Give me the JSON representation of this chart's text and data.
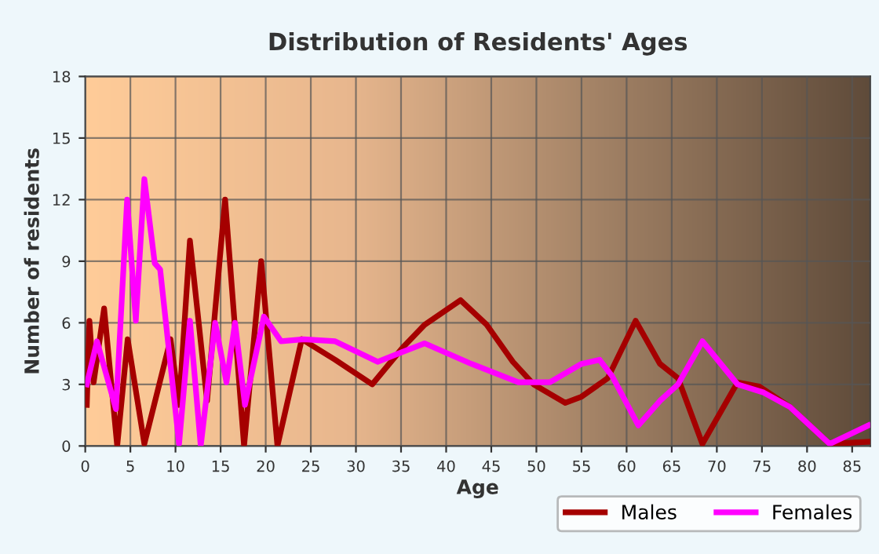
{
  "chart_data": {
    "type": "line",
    "title": "Distribution of Residents' Ages",
    "xlabel": "Age",
    "ylabel": "Number of residents",
    "xlim": [
      0,
      87
    ],
    "xticks": [
      0,
      5,
      10,
      15,
      20,
      25,
      30,
      35,
      40,
      45,
      50,
      55,
      60,
      65,
      70,
      75,
      80,
      85
    ],
    "ylim": [
      0,
      18
    ],
    "yticks": [
      0,
      3,
      6,
      9,
      12,
      15,
      18
    ],
    "grid": true,
    "legend": "bottom",
    "series": [
      {
        "name": "Males",
        "color": "#a50000",
        "x": [
          0.17,
          0.46,
          0.93,
          2.09,
          3.54,
          4.7,
          6.55,
          9.45,
          10.4,
          11.6,
          13.5,
          15.5,
          17.6,
          19.5,
          21.3,
          24,
          27.7,
          31.8,
          35.2,
          37.6,
          41.6,
          44.5,
          47.4,
          49.7,
          53.2,
          55,
          57.9,
          61.0,
          63.7,
          65.7,
          68.4,
          72.3,
          74.7,
          78.1,
          82.5,
          86.8
        ],
        "values": [
          2,
          6.1,
          3.1,
          6.7,
          0,
          5.2,
          0.1,
          5.2,
          2,
          10,
          2.2,
          12,
          0,
          9,
          0,
          5.2,
          4.2,
          3,
          4.8,
          5.9,
          7.1,
          5.9,
          4.1,
          3,
          2.1,
          2.4,
          3.3,
          6.1,
          4,
          3.3,
          0.1,
          3.1,
          2.9,
          1.9,
          0.1,
          0.2
        ]
      },
      {
        "name": "Females",
        "color": "#ff00ff",
        "x": [
          0.17,
          1.3,
          3.4,
          4.64,
          5.6,
          6.55,
          7.7,
          8.3,
          10.4,
          11.6,
          12.8,
          14.4,
          15.65,
          16.6,
          17.7,
          19.8,
          21.7,
          24.2,
          27.7,
          32.4,
          37.6,
          42.8,
          48,
          51.5,
          55,
          57,
          58.4,
          61.3,
          63.7,
          65.7,
          68.4,
          72.3,
          75.2,
          78.1,
          82.5,
          86.8
        ],
        "values": [
          3,
          5.1,
          1.8,
          12,
          6.1,
          13,
          8.9,
          8.6,
          0.1,
          6.1,
          0,
          6,
          3.1,
          6,
          2,
          6.3,
          5.1,
          5.2,
          5.1,
          4.1,
          5,
          4,
          3.1,
          3.1,
          4,
          4.2,
          3.4,
          1,
          2.2,
          3,
          5.1,
          3,
          2.6,
          1.9,
          0.1,
          1
        ]
      }
    ]
  }
}
